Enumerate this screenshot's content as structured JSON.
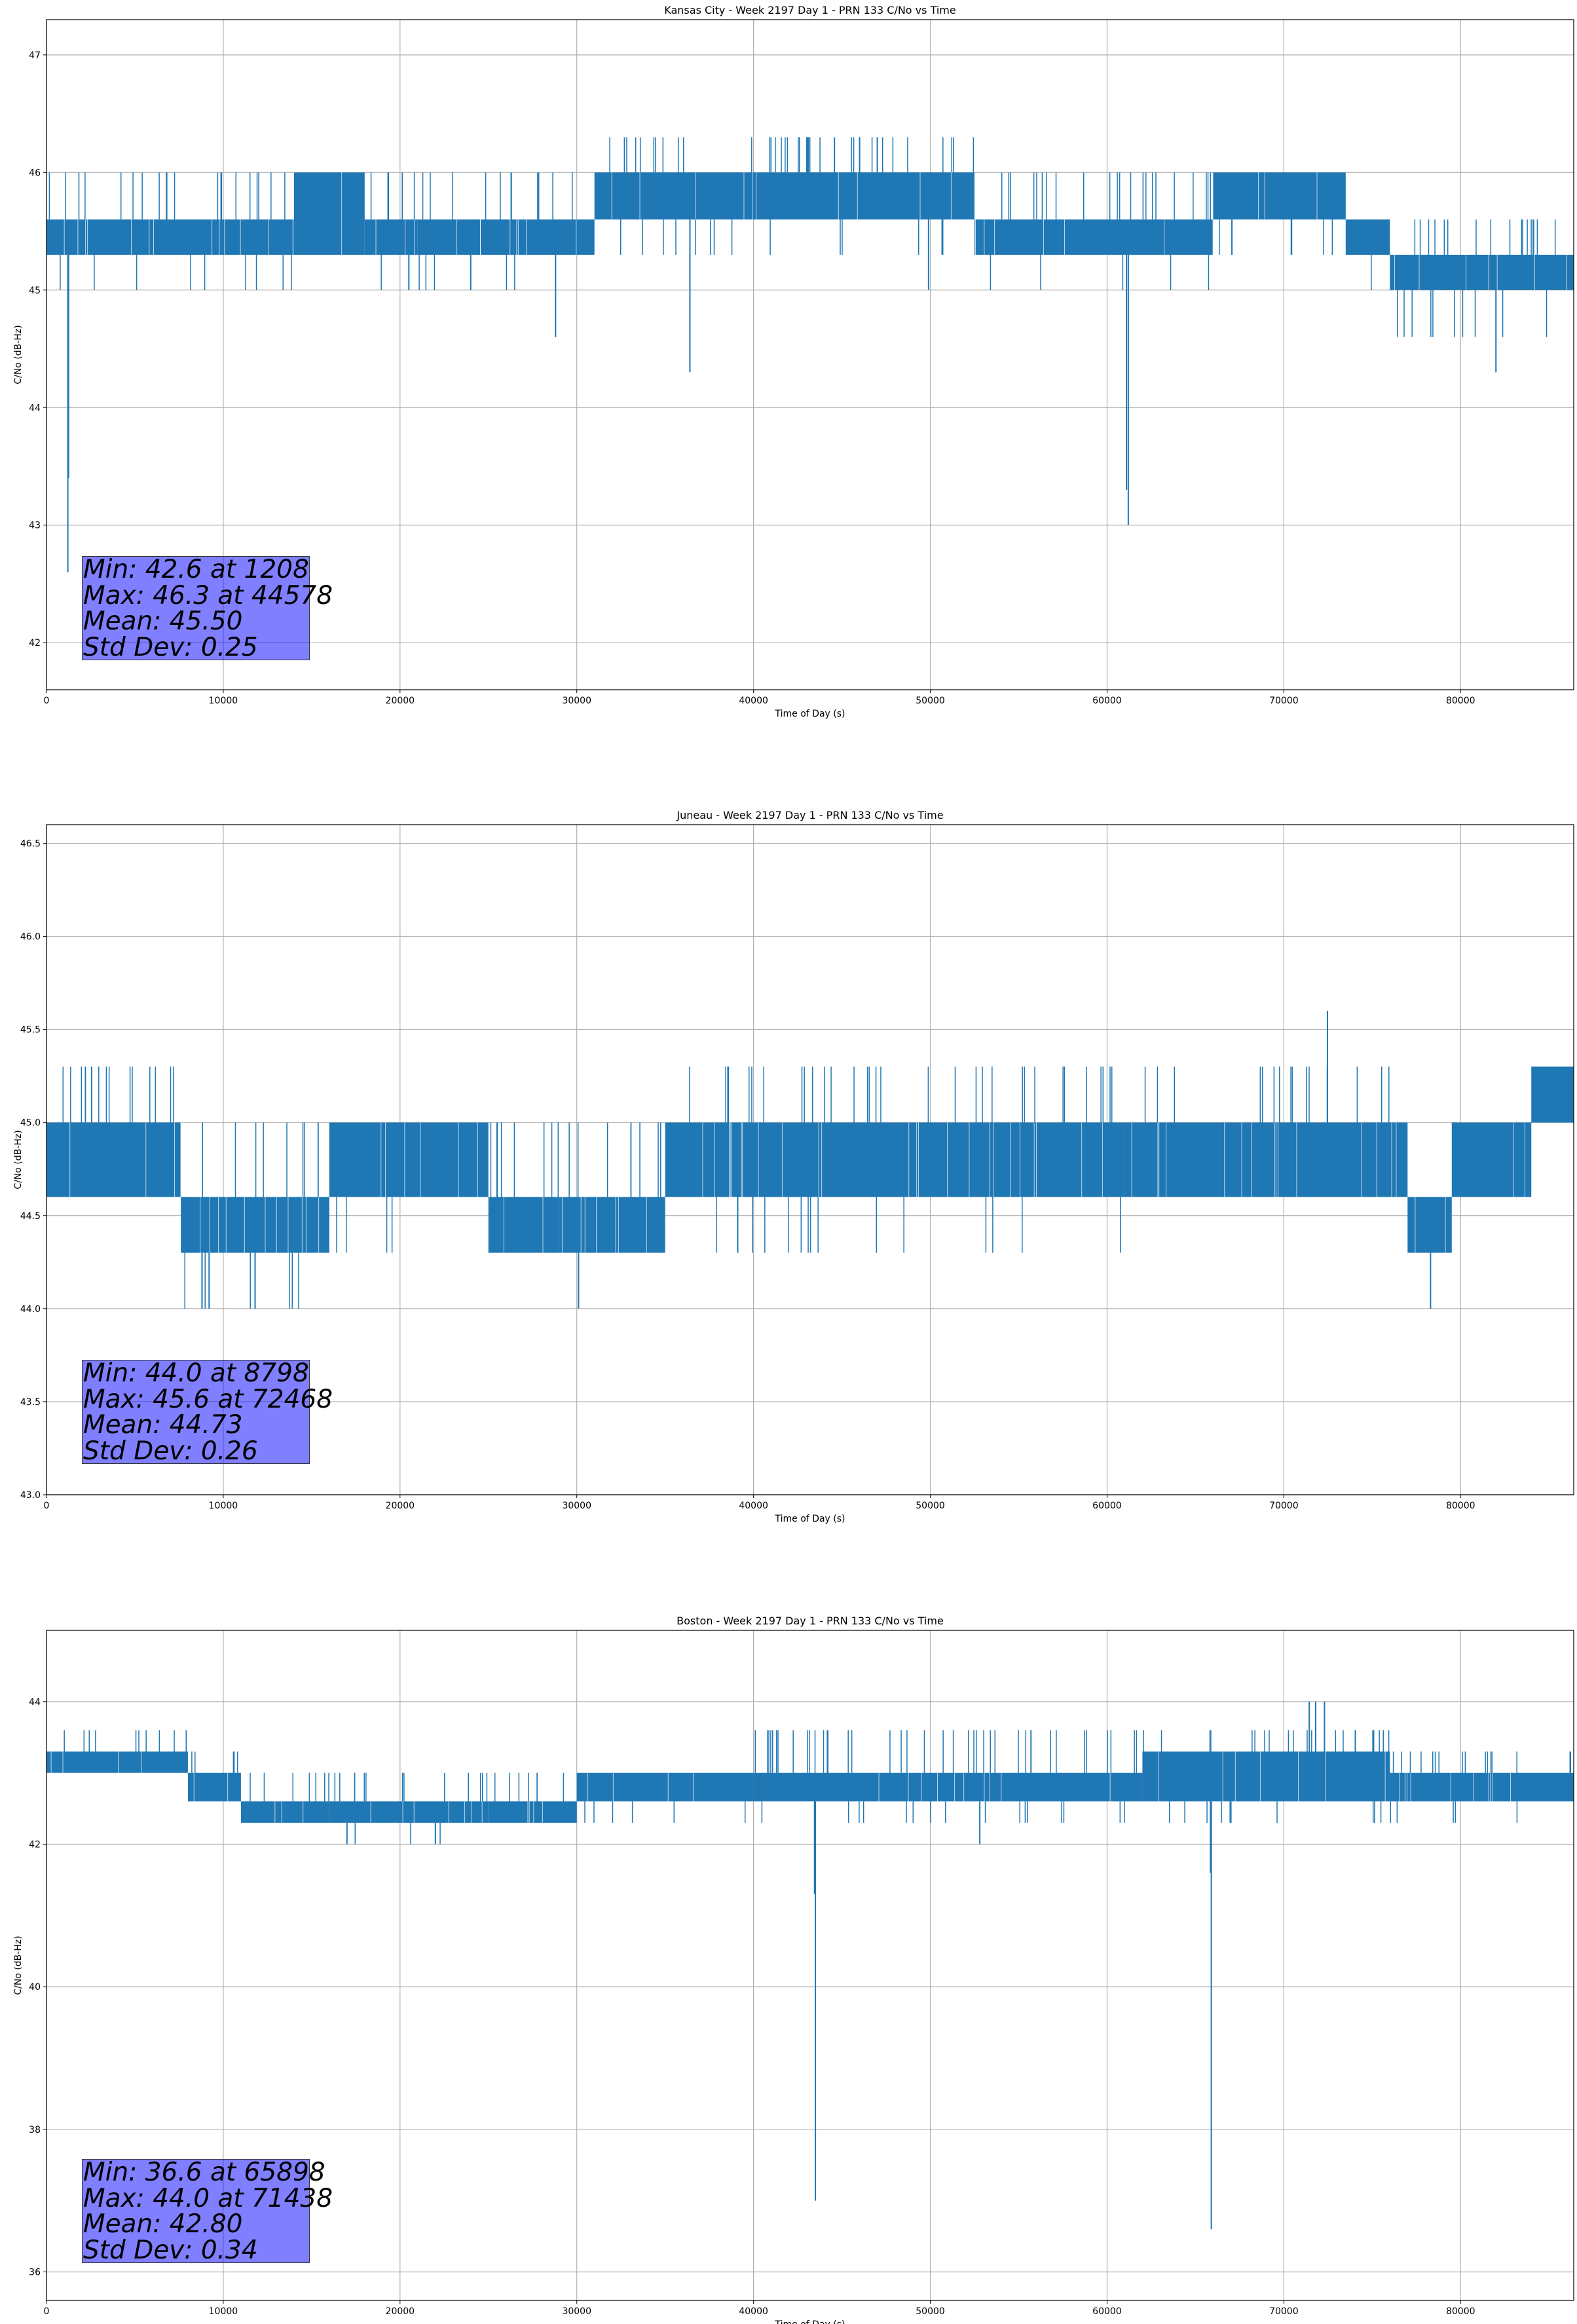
{
  "colors": {
    "line": "#1f77b4",
    "grid": "#b0b0b0",
    "stats_box": "#8080ff"
  },
  "chart_data": [
    {
      "type": "line",
      "title": "Kansas City - Week 2197 Day 1 - PRN 133 C/No vs Time",
      "xlabel": "Time of Day (s)",
      "ylabel": "C/No (dB-Hz)",
      "xlim": [
        0,
        86400
      ],
      "ylim": [
        41.6,
        47.3
      ],
      "xticks": [
        0,
        10000,
        20000,
        30000,
        40000,
        50000,
        60000,
        70000,
        80000
      ],
      "yticks": [
        42,
        43,
        44,
        45,
        46,
        47
      ],
      "grid": true,
      "stats": [
        "Min: 42.6 at 1208",
        "Max: 46.3 at 44578",
        "Mean: 45.50",
        "Std Dev: 0.25"
      ],
      "series": [
        {
          "segments": [
            {
              "x": [
                0,
                10000
              ],
              "lo": 45.3,
              "hi": 45.6,
              "dn": 45.0,
              "up": 46.0
            },
            {
              "x": [
                10000,
                14000
              ],
              "lo": 45.3,
              "hi": 45.6,
              "dn": 45.0,
              "up": 46.0
            },
            {
              "x": [
                14000,
                18000
              ],
              "lo": 45.3,
              "hi": 46.0,
              "dn": 45.3,
              "up": 46.0
            },
            {
              "x": [
                18000,
                21000
              ],
              "lo": 45.3,
              "hi": 45.6,
              "dn": 45.0,
              "up": 46.0
            },
            {
              "x": [
                21000,
                31000
              ],
              "lo": 45.3,
              "hi": 45.6,
              "dn": 45.0,
              "up": 46.0
            },
            {
              "x": [
                31000,
                52500
              ],
              "lo": 45.6,
              "hi": 46.0,
              "dn": 45.3,
              "up": 46.3
            },
            {
              "x": [
                52500,
                66000
              ],
              "lo": 45.3,
              "hi": 45.6,
              "dn": 45.0,
              "up": 46.0
            },
            {
              "x": [
                66000,
                73500
              ],
              "lo": 45.6,
              "hi": 46.0,
              "dn": 45.3,
              "up": 46.0
            },
            {
              "x": [
                73500,
                76000
              ],
              "lo": 45.3,
              "hi": 45.6,
              "dn": 45.0,
              "up": 45.6
            },
            {
              "x": [
                76000,
                86400
              ],
              "lo": 45.0,
              "hi": 45.3,
              "dn": 44.6,
              "up": 45.6
            }
          ],
          "spikes": [
            [
              1208,
              42.6
            ],
            [
              1250,
              43.4
            ],
            [
              20500,
              45.0
            ],
            [
              24000,
              45.0
            ],
            [
              28800,
              44.6
            ],
            [
              36400,
              44.3
            ],
            [
              49900,
              45.0
            ],
            [
              61200,
              43.0
            ],
            [
              61100,
              43.3
            ],
            [
              82000,
              44.3
            ],
            [
              44578,
              46.3
            ],
            [
              46000,
              46.3
            ],
            [
              47000,
              46.3
            ]
          ]
        }
      ]
    },
    {
      "type": "line",
      "title": "Juneau - Week 2197 Day 1 - PRN 133 C/No vs Time",
      "xlabel": "Time of Day (s)",
      "ylabel": "C/No (dB-Hz)",
      "xlim": [
        0,
        86400
      ],
      "ylim": [
        43.0,
        46.6
      ],
      "xticks": [
        0,
        10000,
        20000,
        30000,
        40000,
        50000,
        60000,
        70000,
        80000
      ],
      "yticks": [
        43.0,
        43.5,
        44.0,
        44.5,
        45.0,
        45.5,
        46.0,
        46.5
      ],
      "grid": true,
      "stats": [
        "Min: 44.0 at 8798",
        "Max: 45.6 at 72468",
        "Mean: 44.73",
        "Std Dev: 0.26"
      ],
      "series": [
        {
          "segments": [
            {
              "x": [
                0,
                7600
              ],
              "lo": 44.6,
              "hi": 45.0,
              "dn": 44.6,
              "up": 45.3
            },
            {
              "x": [
                7600,
                16000
              ],
              "lo": 44.3,
              "hi": 44.6,
              "dn": 44.0,
              "up": 45.0
            },
            {
              "x": [
                16000,
                25000
              ],
              "lo": 44.6,
              "hi": 45.0,
              "dn": 44.3,
              "up": 45.0
            },
            {
              "x": [
                25000,
                29000
              ],
              "lo": 44.3,
              "hi": 44.6,
              "dn": 44.3,
              "up": 45.0
            },
            {
              "x": [
                29000,
                35000
              ],
              "lo": 44.3,
              "hi": 44.6,
              "dn": 44.3,
              "up": 45.0
            },
            {
              "x": [
                35000,
                61000
              ],
              "lo": 44.6,
              "hi": 45.0,
              "dn": 44.3,
              "up": 45.3
            },
            {
              "x": [
                61000,
                77000
              ],
              "lo": 44.6,
              "hi": 45.0,
              "dn": 44.6,
              "up": 45.3
            },
            {
              "x": [
                77000,
                79500
              ],
              "lo": 44.3,
              "hi": 44.6,
              "dn": 44.0,
              "up": 44.6
            },
            {
              "x": [
                79500,
                84000
              ],
              "lo": 44.6,
              "hi": 45.0,
              "dn": 44.6,
              "up": 45.0
            },
            {
              "x": [
                84000,
                86400
              ],
              "lo": 45.0,
              "hi": 45.3,
              "dn": 45.0,
              "up": 45.3
            }
          ],
          "spikes": [
            [
              8798,
              44.0
            ],
            [
              9200,
              44.0
            ],
            [
              11800,
              44.0
            ],
            [
              30100,
              44.0
            ],
            [
              78300,
              44.0
            ],
            [
              72468,
              45.6
            ]
          ]
        }
      ]
    },
    {
      "type": "line",
      "title": "Boston - Week 2197 Day 1 - PRN 133 C/No vs Time",
      "xlabel": "Time of Day (s)",
      "ylabel": "C/No (dB-Hz)",
      "xlim": [
        0,
        86400
      ],
      "ylim": [
        35.6,
        45.0
      ],
      "xticks": [
        0,
        10000,
        20000,
        30000,
        40000,
        50000,
        60000,
        70000,
        80000
      ],
      "yticks": [
        36,
        38,
        40,
        42,
        44
      ],
      "grid": true,
      "stats": [
        "Min: 36.6 at 65898",
        "Max: 44.0 at 71438",
        "Mean: 42.80",
        "Std Dev: 0.34"
      ],
      "series": [
        {
          "segments": [
            {
              "x": [
                0,
                8000
              ],
              "lo": 43.0,
              "hi": 43.3,
              "dn": 43.0,
              "up": 43.6
            },
            {
              "x": [
                8000,
                11000
              ],
              "lo": 42.6,
              "hi": 43.0,
              "dn": 42.6,
              "up": 43.3
            },
            {
              "x": [
                11000,
                16000
              ],
              "lo": 42.3,
              "hi": 42.6,
              "dn": 42.3,
              "up": 43.0
            },
            {
              "x": [
                16000,
                25000
              ],
              "lo": 42.3,
              "hi": 42.6,
              "dn": 42.0,
              "up": 43.0
            },
            {
              "x": [
                25000,
                30000
              ],
              "lo": 42.3,
              "hi": 42.6,
              "dn": 42.3,
              "up": 43.0
            },
            {
              "x": [
                30000,
                40000
              ],
              "lo": 42.6,
              "hi": 43.0,
              "dn": 42.3,
              "up": 43.0
            },
            {
              "x": [
                40000,
                62000
              ],
              "lo": 42.6,
              "hi": 43.0,
              "dn": 42.3,
              "up": 43.6
            },
            {
              "x": [
                62000,
                76000
              ],
              "lo": 42.6,
              "hi": 43.3,
              "dn": 42.3,
              "up": 43.6
            },
            {
              "x": [
                76000,
                86400
              ],
              "lo": 42.6,
              "hi": 43.0,
              "dn": 42.3,
              "up": 43.3
            }
          ],
          "spikes": [
            [
              43500,
              37.0
            ],
            [
              43450,
              41.3
            ],
            [
              65898,
              36.6
            ],
            [
              65850,
              41.6
            ],
            [
              52800,
              42.0
            ],
            [
              71438,
              44.0
            ],
            [
              71800,
              44.0
            ],
            [
              72300,
              44.0
            ],
            [
              17000,
              42.0
            ],
            [
              22000,
              42.0
            ]
          ]
        }
      ]
    }
  ]
}
